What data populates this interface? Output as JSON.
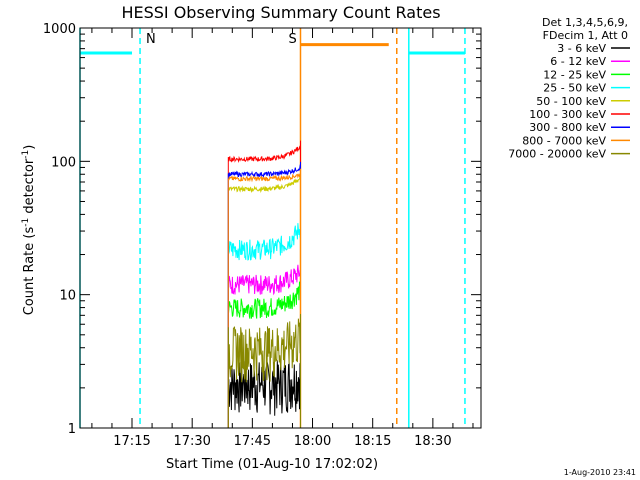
{
  "chart_data": {
    "type": "line",
    "title": "HESSI Observing Summary Count Rates",
    "xlabel": "Start Time (01-Aug-10 17:02:02)",
    "ylabel_main": "Count Rate (s",
    "ylabel_sup1": "-1",
    "ylabel_mid": " detector",
    "ylabel_sup2": "-1",
    "ylabel_end": ")",
    "y_scale": "log",
    "ylim": [
      1,
      1000
    ],
    "y_ticks": [
      {
        "value": 1,
        "label": "1"
      },
      {
        "value": 10,
        "label": "10"
      },
      {
        "value": 100,
        "label": "100"
      },
      {
        "value": 1000,
        "label": "1000"
      }
    ],
    "xlim": [
      "17:02:02",
      "18:42:00"
    ],
    "x_ticks": [
      {
        "value": "17:15",
        "label": "17:15"
      },
      {
        "value": "17:30",
        "label": "17:30"
      },
      {
        "value": "17:45",
        "label": "17:45"
      },
      {
        "value": "18:00",
        "label": "18:00"
      },
      {
        "value": "18:15",
        "label": "18:15"
      },
      {
        "value": "18:30",
        "label": "18:30"
      }
    ],
    "legend": {
      "placement": "right",
      "header": [
        "Det 1,3,4,5,6,9,",
        "FDecim 1, Att 0"
      ],
      "entries": [
        {
          "label": "3 - 6 keV",
          "color": "#000000"
        },
        {
          "label": "6 - 12 keV",
          "color": "#ff00ff"
        },
        {
          "label": "12 - 25 keV",
          "color": "#00ff00"
        },
        {
          "label": "25 - 50 keV",
          "color": "#00ffff"
        },
        {
          "label": "50 - 100 keV",
          "color": "#cccc00"
        },
        {
          "label": "100 - 300 keV",
          "color": "#ff0000"
        },
        {
          "label": "300 - 800 keV",
          "color": "#0000ff"
        },
        {
          "label": "800 - 7000 keV",
          "color": "#ff8800"
        },
        {
          "label": "7000 - 20000 keV",
          "color": "#888800"
        }
      ]
    },
    "series": [
      {
        "name": "3 - 6 keV",
        "color": "#000000",
        "start": "17:39",
        "end": "17:57",
        "level": 2.2,
        "end_level": 2.5
      },
      {
        "name": "6 - 12 keV",
        "color": "#ff00ff",
        "start": "17:39",
        "end": "17:57",
        "level": 12,
        "end_level": 15
      },
      {
        "name": "12 - 25 keV",
        "color": "#00ff00",
        "start": "17:39",
        "end": "17:57",
        "level": 8,
        "end_level": 11
      },
      {
        "name": "25 - 50 keV",
        "color": "#00ffff",
        "start": "17:39",
        "end": "17:57",
        "level": 22,
        "end_level": 32
      },
      {
        "name": "50 - 100 keV",
        "color": "#cccc00",
        "start": "17:39",
        "end": "17:57",
        "level": 62,
        "end_level": 75
      },
      {
        "name": "100 - 300 keV",
        "color": "#ff0000",
        "start": "17:39",
        "end": "17:57",
        "level": 104,
        "end_level": 130
      },
      {
        "name": "300 - 800 keV",
        "color": "#0000ff",
        "start": "17:39",
        "end": "17:57",
        "level": 80,
        "end_level": 90
      },
      {
        "name": "800 - 7000 keV",
        "color": "#ff8800",
        "start": "17:39",
        "end": "17:57",
        "level": 74,
        "end_level": 80
      },
      {
        "name": "7000 - 20000 keV",
        "color": "#888800",
        "start": "17:39",
        "end": "17:57",
        "level": 4,
        "end_level": 5
      }
    ],
    "saa_flags": [
      {
        "start": "17:02:02",
        "end": "17:15",
        "value": 650,
        "color": "#00ffff"
      },
      {
        "start": "18:24",
        "end": "18:38",
        "value": 650,
        "color": "#00ffff"
      }
    ],
    "night_bars": [
      {
        "start": "17:57",
        "end": "18:19",
        "value": 750,
        "color": "#ff8800"
      }
    ],
    "vertical_markers": [
      {
        "time": "17:02:02",
        "color": "#00ffff",
        "style": "solid"
      },
      {
        "time": "17:17",
        "color": "#00ffff",
        "style": "dashed",
        "label": "N"
      },
      {
        "time": "17:57",
        "color": "#ff8800",
        "style": "solid",
        "label": "S"
      },
      {
        "time": "18:21",
        "color": "#ff8800",
        "style": "dashed"
      },
      {
        "time": "18:24",
        "color": "#00ffff",
        "style": "solid"
      },
      {
        "time": "18:38",
        "color": "#00ffff",
        "style": "dashed"
      }
    ],
    "timestamp": "1-Aug-2010 23:41"
  }
}
